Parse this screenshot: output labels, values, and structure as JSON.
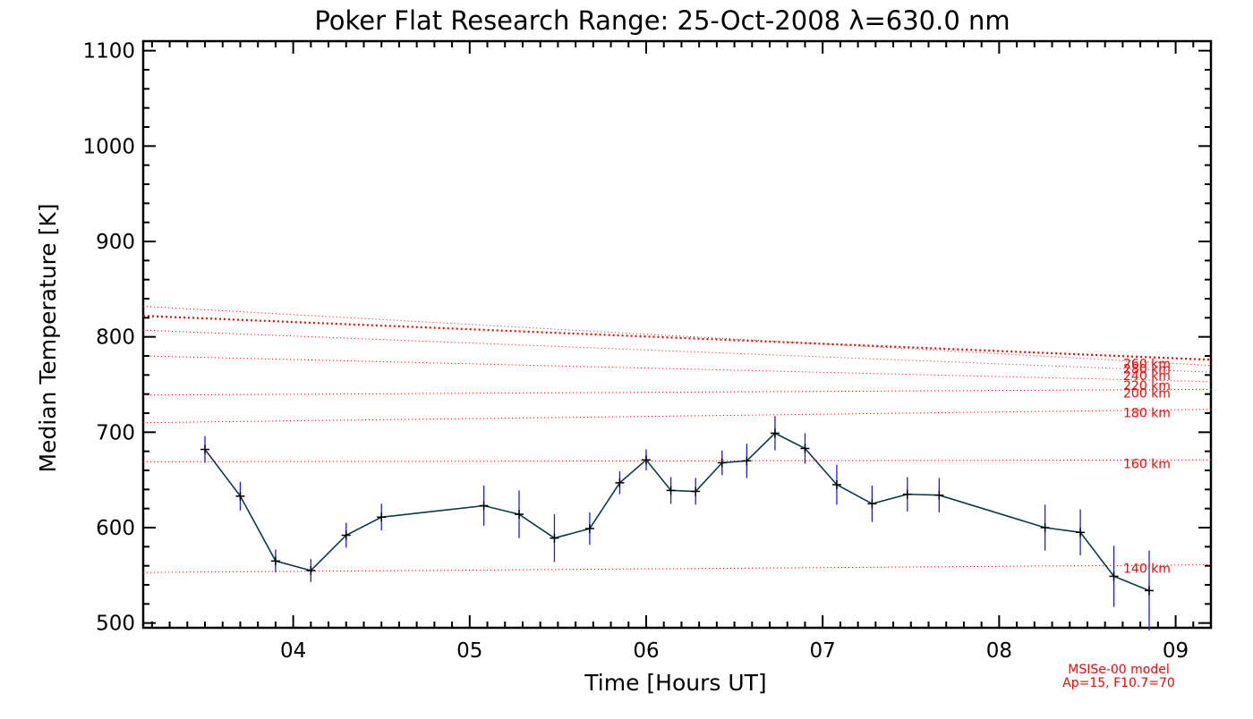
{
  "chart_data": {
    "type": "line",
    "title": "Poker Flat Research Range: 25-Oct-2008 λ=630.0 nm",
    "xlabel": "Time [Hours UT]",
    "ylabel": "Median Temperature [K]",
    "xlim": [
      3.15,
      9.2
    ],
    "ylim": [
      495,
      1110
    ],
    "xticks": [
      4,
      5,
      6,
      7,
      8,
      9
    ],
    "xtick_labels": [
      "04",
      "05",
      "06",
      "07",
      "08",
      "09"
    ],
    "yticks": [
      500,
      600,
      700,
      800,
      900,
      1000,
      1100
    ],
    "ytick_labels": [
      "500",
      "600",
      "700",
      "800",
      "900",
      "1000",
      "1100"
    ],
    "grid": false,
    "measured": {
      "x": [
        3.5,
        3.7,
        3.9,
        4.1,
        4.3,
        4.5,
        5.08,
        5.28,
        5.48,
        5.68,
        5.85,
        6.0,
        6.14,
        6.28,
        6.43,
        6.57,
        6.73,
        6.9,
        7.08,
        7.28,
        7.48,
        7.66,
        8.26,
        8.46,
        8.65,
        8.85
      ],
      "y": [
        682,
        633,
        565,
        555,
        592,
        611,
        623,
        614,
        589,
        599,
        647,
        671,
        639,
        638,
        668,
        670,
        699,
        683,
        645,
        625,
        635,
        634,
        600,
        595,
        549,
        534
      ],
      "err": [
        14,
        15,
        12,
        12,
        13,
        14,
        21,
        25,
        25,
        17,
        12,
        11,
        14,
        14,
        13,
        18,
        18,
        16,
        21,
        19,
        18,
        18,
        24,
        24,
        32,
        42
      ]
    },
    "model_lines": [
      {
        "label": "140 km",
        "y0": 553,
        "y1": 561
      },
      {
        "label": "160 km",
        "y0": 669,
        "y1": 671
      },
      {
        "label": "180 km",
        "y0": 710,
        "y1": 724
      },
      {
        "label": "200 km",
        "y0": 739,
        "y1": 745
      },
      {
        "label": "220 km",
        "y0": 780,
        "y1": 753
      },
      {
        "label": "240 km",
        "y0": 807,
        "y1": 763
      },
      {
        "label": "260 km",
        "y0": 822,
        "y1": 776,
        "emphasis": true
      },
      {
        "label": "280 km",
        "y0": 832,
        "y1": 770
      }
    ],
    "model_note": [
      "MSISe-00 model",
      "Ap=15, F10.7=70"
    ],
    "colors": {
      "axes": "#000000",
      "line": "#0b3a4a",
      "marker": "#000000",
      "errorbar": "#1a1aff",
      "model": "#ff0000"
    }
  }
}
